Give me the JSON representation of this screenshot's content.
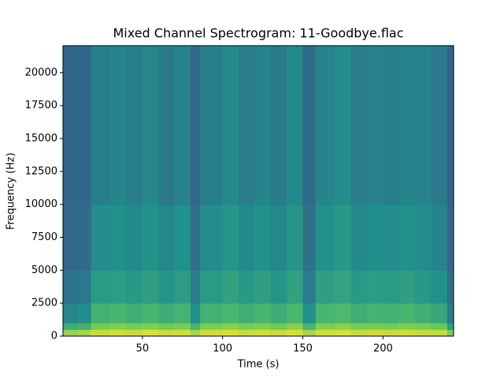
{
  "chart_data": {
    "type": "spectrogram",
    "title": "Mixed Channel Spectrogram: 11-Goodbye.flac",
    "xlabel": "Time (s)",
    "ylabel": "Frequency (Hz)",
    "colormap": "viridis",
    "xlim": [
      0.5,
      244
    ],
    "ylim": [
      0,
      22050
    ],
    "xticks": [
      50,
      100,
      150,
      200
    ],
    "yticks": [
      0,
      2500,
      5000,
      7500,
      10000,
      12500,
      15000,
      17500,
      20000
    ],
    "time_bins": [
      0.5,
      10,
      18,
      30,
      40,
      50,
      60,
      70,
      80,
      86,
      100,
      110,
      120,
      130,
      140,
      150,
      158,
      170,
      180,
      190,
      200,
      210,
      220,
      230,
      240,
      244
    ],
    "freq_bins": [
      0,
      500,
      1000,
      2500,
      5000,
      10000,
      22050
    ],
    "values": [
      [
        0.84,
        0.62,
        0.46,
        0.38,
        0.34,
        0.33
      ],
      [
        0.86,
        0.64,
        0.48,
        0.4,
        0.35,
        0.33
      ],
      [
        0.92,
        0.78,
        0.64,
        0.54,
        0.48,
        0.43
      ],
      [
        0.93,
        0.8,
        0.66,
        0.55,
        0.5,
        0.45
      ],
      [
        0.92,
        0.78,
        0.63,
        0.53,
        0.47,
        0.42
      ],
      [
        0.94,
        0.8,
        0.66,
        0.56,
        0.51,
        0.46
      ],
      [
        0.92,
        0.77,
        0.62,
        0.52,
        0.46,
        0.41
      ],
      [
        0.93,
        0.79,
        0.65,
        0.55,
        0.5,
        0.44
      ],
      [
        0.86,
        0.66,
        0.5,
        0.42,
        0.36,
        0.34
      ],
      [
        0.93,
        0.79,
        0.64,
        0.54,
        0.48,
        0.43
      ],
      [
        0.94,
        0.81,
        0.67,
        0.57,
        0.52,
        0.47
      ],
      [
        0.92,
        0.78,
        0.63,
        0.53,
        0.47,
        0.42
      ],
      [
        0.93,
        0.8,
        0.66,
        0.56,
        0.5,
        0.45
      ],
      [
        0.92,
        0.77,
        0.62,
        0.52,
        0.46,
        0.41
      ],
      [
        0.94,
        0.81,
        0.67,
        0.57,
        0.52,
        0.47
      ],
      [
        0.86,
        0.66,
        0.5,
        0.42,
        0.37,
        0.35
      ],
      [
        0.93,
        0.8,
        0.66,
        0.56,
        0.5,
        0.45
      ],
      [
        0.94,
        0.82,
        0.68,
        0.58,
        0.53,
        0.48
      ],
      [
        0.92,
        0.78,
        0.63,
        0.53,
        0.47,
        0.42
      ],
      [
        0.93,
        0.79,
        0.65,
        0.55,
        0.49,
        0.44
      ],
      [
        0.92,
        0.78,
        0.64,
        0.54,
        0.48,
        0.43
      ],
      [
        0.93,
        0.8,
        0.66,
        0.56,
        0.5,
        0.45
      ],
      [
        0.92,
        0.78,
        0.63,
        0.53,
        0.48,
        0.44
      ],
      [
        0.91,
        0.76,
        0.6,
        0.5,
        0.45,
        0.41
      ],
      [
        0.78,
        0.55,
        0.42,
        0.36,
        0.33,
        0.32
      ]
    ]
  }
}
